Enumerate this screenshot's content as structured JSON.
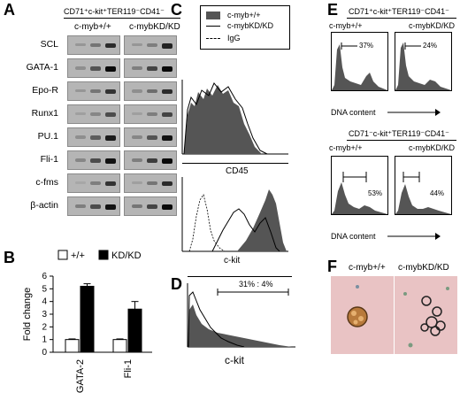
{
  "panels": {
    "A": {
      "letter": "A",
      "header": "CD71⁺c-kit⁺TER119⁻CD41⁻",
      "genotypes": [
        "c-myb+/+",
        "c-mybKD/KD"
      ],
      "genes": [
        "SCL",
        "GATA-1",
        "Epo-R",
        "Runx1",
        "PU.1",
        "Fli-1",
        "c-fms",
        "β-actin"
      ]
    },
    "B": {
      "letter": "B",
      "legend": [
        "+/+",
        "KD/KD"
      ]
    },
    "C": {
      "letter": "C",
      "legend": [
        "c-myb+/+",
        "c-mybKD/KD",
        "IgG"
      ],
      "hist_label": "CD45",
      "xlabel": "c-kit"
    },
    "D": {
      "letter": "D",
      "gate_label": "31% : 4%",
      "xlabel": "c-kit"
    },
    "E": {
      "letter": "E",
      "top_header": "CD71⁺c-kit⁺TER119⁻CD41⁻",
      "bottom_header": "CD71⁻c-kit⁺TER119⁻CD41⁻",
      "genotypes": [
        "c-myb+/+",
        "c-mybKD/KD"
      ],
      "top_pcts": [
        "37%",
        "24%"
      ],
      "bottom_pcts": [
        "53%",
        "44%"
      ],
      "axis_label": "DNA content"
    },
    "F": {
      "letter": "F",
      "genotypes": [
        "c-myb+/+",
        "c-mybKD/KD"
      ]
    }
  },
  "chart_data": {
    "type": "bar",
    "categories": [
      "GATA-2",
      "Fli-1"
    ],
    "series": [
      {
        "name": "+/+",
        "values": [
          1.0,
          1.0
        ],
        "errors": [
          0.05,
          0.05
        ],
        "color": "#ffffff"
      },
      {
        "name": "KD/KD",
        "values": [
          5.2,
          3.4
        ],
        "errors": [
          0.2,
          0.6
        ],
        "color": "#000000"
      }
    ],
    "ylabel": "Fold change",
    "yticks": [
      0,
      1,
      2,
      3,
      4,
      5,
      6
    ],
    "ylim": [
      0,
      6
    ],
    "legend": "top"
  },
  "colors": {
    "fill": "#555555",
    "gel_bg": "#b5b5b5"
  }
}
